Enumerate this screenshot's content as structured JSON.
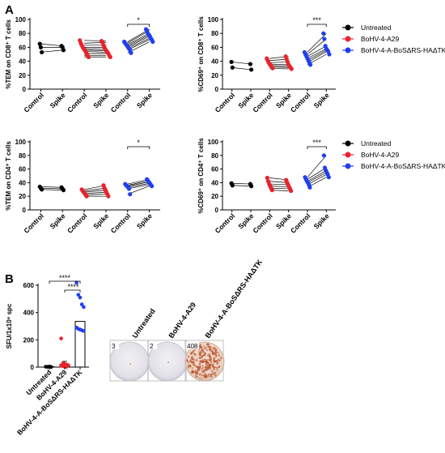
{
  "panel_labels": {
    "a": "A",
    "b": "B"
  },
  "legend": {
    "items": [
      {
        "label": "Untreated",
        "color": "#000000"
      },
      {
        "label": "BoHV-4-A29",
        "color": "#e8232b"
      },
      {
        "label": "BoHV-4-A-BoSΔRS-HAΔTK",
        "color": "#1f3ff0"
      }
    ]
  },
  "wells": {
    "labels": [
      "Untreated",
      "BoHV-4-A29",
      "BoHV-4-A-BoSΔRS-HAΔTK"
    ],
    "counts": [
      "3",
      "2",
      "408"
    ]
  },
  "chart_data": [
    {
      "type": "scatter",
      "ylabel": "%TEM on CD8⁺ T cells",
      "categories": [
        "Control",
        "Spike",
        "Control",
        "Spike",
        "Control",
        "Spike"
      ],
      "ylim": [
        0,
        100
      ],
      "yticks": [
        0,
        20,
        40,
        60,
        80,
        100
      ],
      "significance": "*",
      "series": [
        {
          "name": "Untreated",
          "control": [
            65,
            60,
            53
          ],
          "spike": [
            62,
            60,
            56
          ]
        },
        {
          "name": "BoHV-4-A29",
          "control": [
            70,
            66,
            63,
            60,
            58,
            56,
            54,
            51,
            48,
            46
          ],
          "spike": [
            69,
            67,
            63,
            60,
            57,
            55,
            53,
            51,
            48,
            46
          ]
        },
        {
          "name": "BoHV-4-A-BoSΔRS-HAΔTK",
          "control": [
            68,
            66,
            64,
            62,
            60,
            58,
            56,
            52
          ],
          "spike": [
            86,
            84,
            80,
            78,
            76,
            73,
            71,
            68
          ]
        }
      ]
    },
    {
      "type": "scatter",
      "ylabel": "%CD69⁺ on CD8⁺ T cells",
      "categories": [
        "Control",
        "Spike",
        "Control",
        "Spike",
        "Control",
        "Spike"
      ],
      "ylim": [
        0,
        100
      ],
      "yticks": [
        0,
        20,
        40,
        60,
        80,
        100
      ],
      "significance": "***",
      "series": [
        {
          "name": "Untreated",
          "control": [
            39,
            31
          ],
          "spike": [
            36,
            28
          ]
        },
        {
          "name": "BoHV-4-A29",
          "control": [
            44,
            41,
            38,
            36,
            34,
            32,
            30
          ],
          "spike": [
            47,
            43,
            39,
            35,
            33,
            31,
            29
          ]
        },
        {
          "name": "BoHV-4-A-BoSΔRS-HAΔTK",
          "control": [
            53,
            50,
            47,
            44,
            41,
            38,
            35
          ],
          "spike": [
            80,
            72,
            62,
            58,
            56,
            54,
            50
          ]
        }
      ]
    },
    {
      "type": "scatter",
      "ylabel": "%TEM on CD4⁺ T cells",
      "categories": [
        "Control",
        "Spike",
        "Control",
        "Spike",
        "Control",
        "Spike"
      ],
      "ylim": [
        0,
        100
      ],
      "yticks": [
        0,
        20,
        40,
        60,
        80,
        100
      ],
      "significance": "*",
      "series": [
        {
          "name": "Untreated",
          "control": [
            34,
            32,
            30
          ],
          "spike": [
            33,
            31,
            29
          ]
        },
        {
          "name": "BoHV-4-A29",
          "control": [
            30,
            28,
            26,
            24,
            22,
            20
          ],
          "spike": [
            36,
            32,
            29,
            26,
            23,
            20
          ]
        },
        {
          "name": "BoHV-4-A-BoSΔRS-HAΔTK",
          "control": [
            38,
            36,
            35,
            33,
            31,
            23
          ],
          "spike": [
            45,
            43,
            41,
            39,
            37,
            35
          ]
        }
      ]
    },
    {
      "type": "scatter",
      "ylabel": "%CD69⁺ on CD4⁺ T cells",
      "categories": [
        "Control",
        "Spike",
        "Control",
        "Spike",
        "Control",
        "Spike"
      ],
      "ylim": [
        0,
        100
      ],
      "yticks": [
        0,
        20,
        40,
        60,
        80,
        100
      ],
      "significance": "***",
      "series": [
        {
          "name": "Untreated",
          "control": [
            39,
            36
          ],
          "spike": [
            38,
            35
          ]
        },
        {
          "name": "BoHV-4-A29",
          "control": [
            47,
            42,
            38,
            35,
            32,
            29
          ],
          "spike": [
            44,
            40,
            37,
            34,
            31,
            28
          ]
        },
        {
          "name": "BoHV-4-A-BoSΔRS-HAΔTK",
          "control": [
            48,
            45,
            42,
            40,
            37,
            33
          ],
          "spike": [
            80,
            62,
            58,
            55,
            52,
            48
          ]
        }
      ]
    },
    {
      "type": "bar",
      "ylabel": "SFU/1x10⁶ spc",
      "categories": [
        "Untreated",
        "BoHV-4-A29",
        "BoHV-4-A-BoSΔRS-HAΔTK"
      ],
      "values": [
        3,
        20,
        335
      ],
      "errors": [
        3,
        22,
        0
      ],
      "ylim": [
        0,
        600
      ],
      "yticks": [
        0,
        200,
        400,
        600
      ],
      "significance": [
        "****",
        "****"
      ],
      "points": [
        [
          3,
          2,
          4,
          1
        ],
        [
          210,
          28,
          22,
          18,
          14,
          10,
          6,
          4,
          2
        ],
        [
          620,
          530,
          510,
          460,
          440,
          290,
          280,
          275,
          270,
          265
        ]
      ]
    }
  ]
}
